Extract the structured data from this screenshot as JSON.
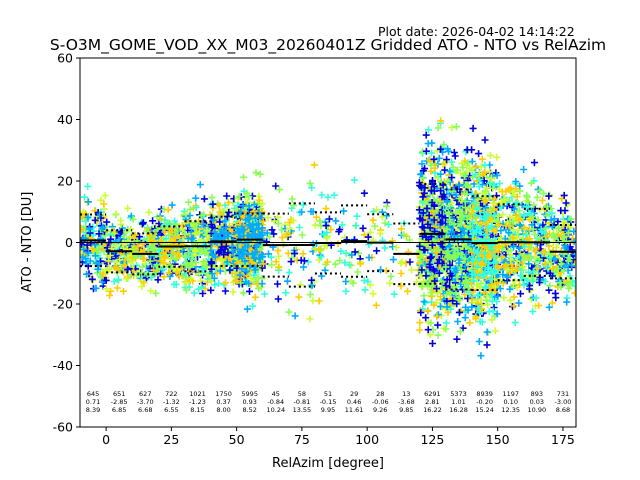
{
  "chart_data": {
    "type": "scatter",
    "title": "S-O3M_GOME_VOD_XX_M03_20260401Z Gridded ATO - NTO vs RelAzim",
    "subtitle": "Plot date: 2026-04-02 14:14:22",
    "xlabel": "RelAzim [degree]",
    "ylabel": "ATO - NTO [DU]",
    "xlim": [
      -10,
      180
    ],
    "ylim": [
      -60,
      60
    ],
    "xticks": [
      0,
      25,
      50,
      75,
      100,
      125,
      150,
      175
    ],
    "yticks": [
      -60,
      -40,
      -20,
      0,
      20,
      40,
      60
    ],
    "grid": false,
    "series_colors": [
      "#0000dd",
      "#00aaff",
      "#33ffdd",
      "#88ff55",
      "#ccff33",
      "#ffcc00"
    ],
    "bins": [
      {
        "start": -10,
        "end": 0,
        "count": "645",
        "mean": 0.71,
        "std": 8.39,
        "mean_label": "0.71",
        "std_label": "8.39"
      },
      {
        "start": 0,
        "end": 10,
        "count": "651",
        "mean": -2.85,
        "std": 6.85,
        "mean_label": "-2.85",
        "std_label": "6.85"
      },
      {
        "start": 10,
        "end": 20,
        "count": "627",
        "mean": -3.7,
        "std": 6.68,
        "mean_label": "-3.70",
        "std_label": "6.68"
      },
      {
        "start": 20,
        "end": 30,
        "count": "722",
        "mean": -1.32,
        "std": 6.55,
        "mean_label": "-1.32",
        "std_label": "6.55"
      },
      {
        "start": 30,
        "end": 40,
        "count": "1021",
        "mean": -1.23,
        "std": 8.15,
        "mean_label": "-1.23",
        "std_label": "8.15"
      },
      {
        "start": 40,
        "end": 50,
        "count": "1750",
        "mean": 0.37,
        "std": 8.0,
        "mean_label": "0.37",
        "std_label": "8.00"
      },
      {
        "start": 50,
        "end": 60,
        "count": "5995",
        "mean": 0.93,
        "std": 8.52,
        "mean_label": "0.93",
        "std_label": "8.52"
      },
      {
        "start": 60,
        "end": 70,
        "count": "45",
        "mean": -0.84,
        "std": 10.24,
        "mean_label": "-0.84",
        "std_label": "10.24"
      },
      {
        "start": 70,
        "end": 80,
        "count": "58",
        "mean": -0.81,
        "std": 13.55,
        "mean_label": "-0.81",
        "std_label": "13.55"
      },
      {
        "start": 80,
        "end": 90,
        "count": "51",
        "mean": -0.15,
        "std": 9.95,
        "mean_label": "-0.15",
        "std_label": "9.95"
      },
      {
        "start": 90,
        "end": 100,
        "count": "29",
        "mean": 0.46,
        "std": 11.61,
        "mean_label": "0.46",
        "std_label": "11.61"
      },
      {
        "start": 100,
        "end": 110,
        "count": "28",
        "mean": -0.06,
        "std": 9.26,
        "mean_label": "-0.06",
        "std_label": "9.26"
      },
      {
        "start": 110,
        "end": 120,
        "count": "13",
        "mean": -3.68,
        "std": 9.85,
        "mean_label": "-3.68",
        "std_label": "9.85"
      },
      {
        "start": 120,
        "end": 130,
        "count": "6291",
        "mean": 2.81,
        "std": 16.22,
        "mean_label": "2.81",
        "std_label": "16.22"
      },
      {
        "start": 130,
        "end": 140,
        "count": "5373",
        "mean": 1.01,
        "std": 16.28,
        "mean_label": "1.01",
        "std_label": "16.28"
      },
      {
        "start": 140,
        "end": 150,
        "count": "8939",
        "mean": -0.2,
        "std": 15.24,
        "mean_label": "-0.20",
        "std_label": "15.24"
      },
      {
        "start": 150,
        "end": 160,
        "count": "1197",
        "mean": 0.1,
        "std": 12.35,
        "mean_label": "0.10",
        "std_label": "12.35"
      },
      {
        "start": 160,
        "end": 170,
        "count": "893",
        "mean": 0.03,
        "std": 10.9,
        "mean_label": "0.03",
        "std_label": "10.90"
      },
      {
        "start": 170,
        "end": 180,
        "count": "731",
        "mean": -3.0,
        "std": 8.68,
        "mean_label": "-3.00",
        "std_label": "8.68"
      }
    ]
  }
}
